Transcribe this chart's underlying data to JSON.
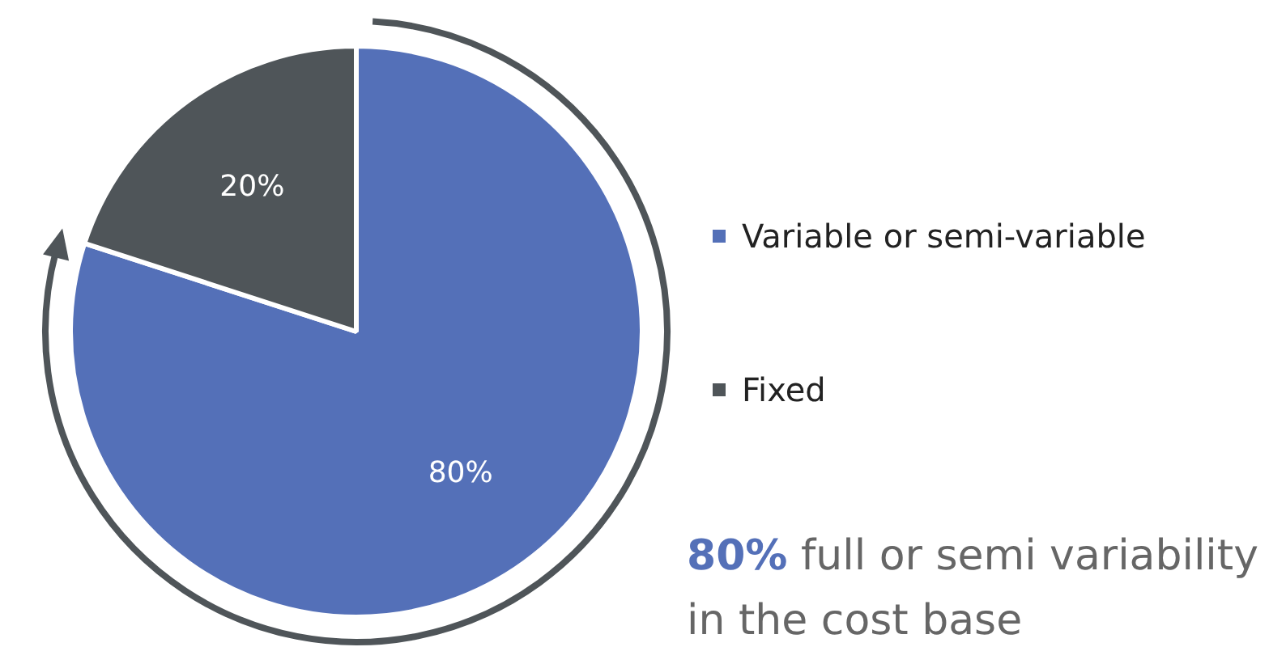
{
  "chart_data": {
    "type": "pie",
    "categories": [
      "Variable or semi-variable",
      "Fixed"
    ],
    "values": [
      80,
      20
    ],
    "colors": [
      "#5470b8",
      "#4f5559"
    ],
    "value_labels": [
      "80%",
      "20%"
    ],
    "legend": "right",
    "annotations": [
      "80% full or semi variability in the cost base"
    ]
  }
}
